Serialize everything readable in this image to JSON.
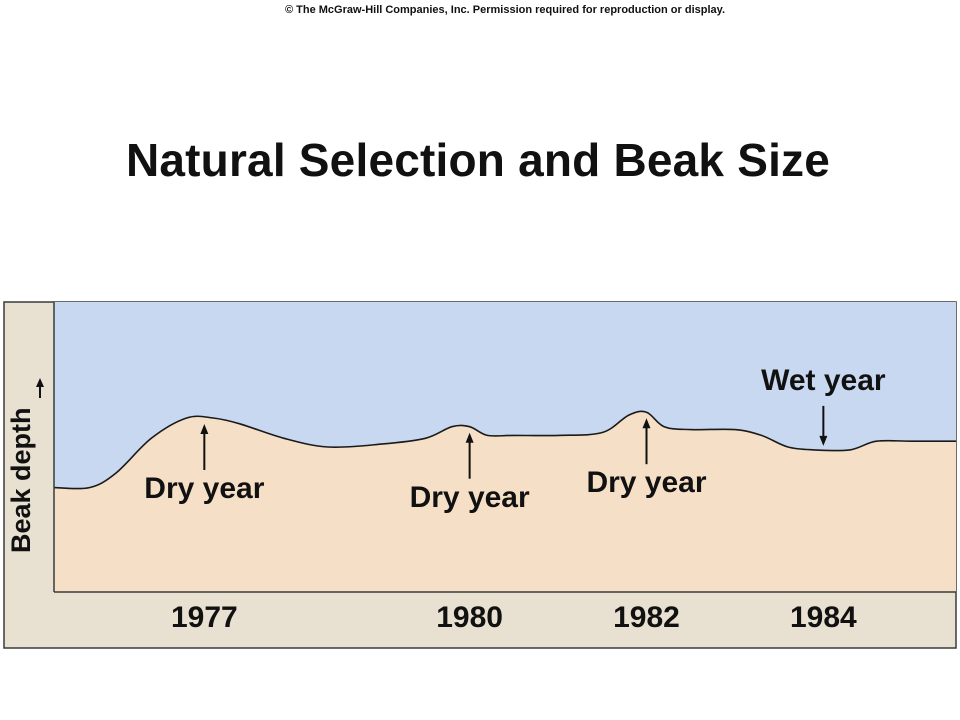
{
  "copyright": "© The McGraw-Hill Companies, Inc. Permission required for reproduction or display.",
  "title": "Natural Selection and Beak Size",
  "chart_data": {
    "type": "area",
    "title": "Natural Selection and Beak Size",
    "xlabel": "",
    "ylabel": "Beak depth",
    "xlim": [
      1975.3,
      1985.5
    ],
    "ylim": [
      0,
      10
    ],
    "x_ticks": [
      1977,
      1980,
      1982,
      1984
    ],
    "tick_labels": [
      "1977",
      "1980",
      "1982",
      "1984"
    ],
    "colors": {
      "above": "#c8d8f0",
      "below": "#f6dfc7",
      "panel": "#e8e0d1",
      "line": "#1a1a1a"
    },
    "series": [
      {
        "x": [
          1975.3,
          1975.7,
          1976.0,
          1976.4,
          1976.8,
          1977.1,
          1977.4,
          1977.9,
          1978.4,
          1979.0,
          1979.5,
          1979.8,
          1980.0,
          1980.2,
          1980.5,
          1981.0,
          1981.5,
          1981.8,
          1982.0,
          1982.2,
          1982.5,
          1983.0,
          1983.3,
          1983.6,
          1983.9,
          1984.3,
          1984.6,
          1985.0,
          1985.5
        ],
        "y": [
          3.6,
          3.6,
          4.1,
          5.3,
          6.0,
          6.0,
          5.8,
          5.3,
          5.0,
          5.1,
          5.3,
          5.7,
          5.7,
          5.4,
          5.4,
          5.4,
          5.5,
          6.1,
          6.2,
          5.7,
          5.6,
          5.6,
          5.4,
          5.0,
          4.9,
          4.9,
          5.2,
          5.2,
          5.2
        ]
      }
    ],
    "annotations": [
      {
        "text": "Dry year",
        "x": 1977.0,
        "direction": "up"
      },
      {
        "text": "Dry year",
        "x": 1980.0,
        "direction": "up"
      },
      {
        "text": "Dry year",
        "x": 1982.0,
        "direction": "up"
      },
      {
        "text": "Wet year",
        "x": 1984.0,
        "direction": "down"
      }
    ]
  }
}
